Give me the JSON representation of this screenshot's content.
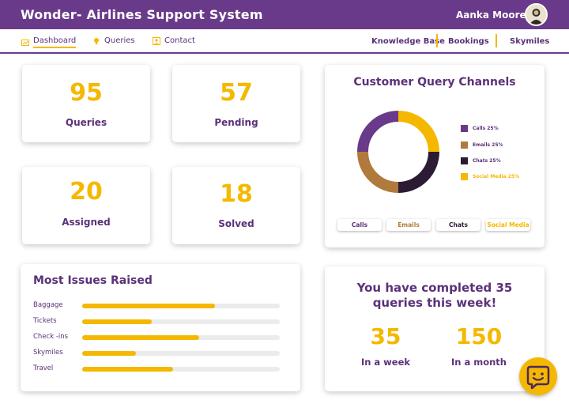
{
  "header": {
    "app_title": "Wonder- Airlines Support System",
    "user_name": "Aanka Moore"
  },
  "nav": {
    "left": [
      {
        "label": "Dashboard",
        "icon": "dashboard-icon"
      },
      {
        "label": "Queries",
        "icon": "bulb-icon"
      },
      {
        "label": "Contact",
        "icon": "contact-card-icon"
      }
    ],
    "right": [
      "Knowledge Base",
      "Bookings",
      "Skymiles"
    ]
  },
  "stats": [
    {
      "value": "95",
      "label": "Queries"
    },
    {
      "value": "57",
      "label": "Pending"
    },
    {
      "value": "20",
      "label": "Assigned"
    },
    {
      "value": "18",
      "label": "Solved"
    }
  ],
  "channels": {
    "title": "Customer Query Channels",
    "legend": [
      {
        "label": "Calls  25%",
        "color": "#6a3a8a"
      },
      {
        "label": "Emails  25%",
        "color": "#b07a3c"
      },
      {
        "label": "Chats  25%",
        "color": "#2b1b33"
      },
      {
        "label": "Social Media  25%",
        "color": "#f5b800"
      }
    ],
    "buttons": [
      {
        "label": "Calls",
        "color": "#5b3179"
      },
      {
        "label": "Emails",
        "color": "#b07a3c"
      },
      {
        "label": "Chats",
        "color": "#2b1b33"
      },
      {
        "label": "Social Media",
        "color": "#f5b800"
      }
    ]
  },
  "chart_data": {
    "type": "pie",
    "categories": [
      "Calls",
      "Emails",
      "Chats",
      "Social Media"
    ],
    "values": [
      25,
      25,
      25,
      25
    ],
    "colors": [
      "#6a3a8a",
      "#b07a3c",
      "#2b1b33",
      "#f5b800"
    ],
    "title": "Customer Query Channels",
    "legend": "right"
  },
  "issues": {
    "title": "Most Issues Raised",
    "items": [
      {
        "label": "Baggage",
        "fraction": 0.67
      },
      {
        "label": "Tickets",
        "fraction": 0.35
      },
      {
        "label": "Check -ins",
        "fraction": 0.59
      },
      {
        "label": "Skymiles",
        "fraction": 0.27
      },
      {
        "label": "Travel",
        "fraction": 0.46
      }
    ]
  },
  "completed": {
    "title": "You have completed 35 queries this week!",
    "week_value": "35",
    "week_label": "In a week",
    "month_value": "150",
    "month_label": "In a month"
  },
  "colors": {
    "brand_purple": "#6a3a8a",
    "accent_yellow": "#f5b800"
  }
}
